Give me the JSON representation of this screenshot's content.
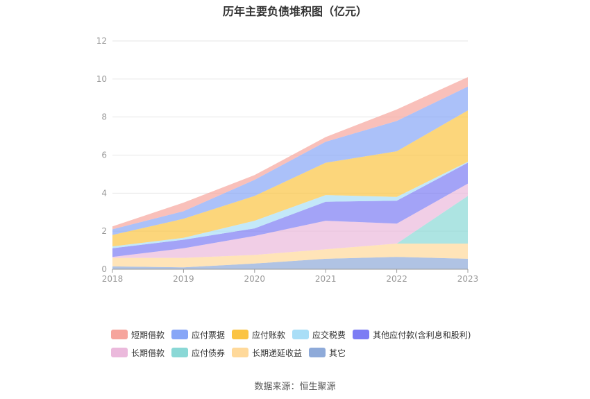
{
  "chart_data": {
    "type": "area",
    "stacked": true,
    "title": "历年主要负债堆积图（亿元）",
    "categories": [
      "2018",
      "2019",
      "2020",
      "2021",
      "2022",
      "2023"
    ],
    "ylim": [
      0,
      12
    ],
    "yticks": [
      0,
      2,
      4,
      6,
      8,
      10,
      12
    ],
    "grid": true,
    "legend_position": "bottom",
    "series": [
      {
        "name": "其它",
        "color": "#8eaad9",
        "values": [
          0.15,
          0.1,
          0.3,
          0.55,
          0.65,
          0.55
        ]
      },
      {
        "name": "长期递延收益",
        "color": "#ffd99a",
        "values": [
          0.45,
          0.5,
          0.45,
          0.5,
          0.7,
          0.8
        ]
      },
      {
        "name": "应付债券",
        "color": "#8ad8d6",
        "values": [
          0,
          0,
          0,
          0,
          0,
          2.5
        ]
      },
      {
        "name": "长期借款",
        "color": "#ebb9dc",
        "values": [
          0.05,
          0.5,
          1.0,
          1.5,
          1.05,
          0.65
        ]
      },
      {
        "name": "其他应付款(含利息和股利)",
        "color": "#7c7cf4",
        "values": [
          0.45,
          0.45,
          0.4,
          1.0,
          1.2,
          1.1
        ]
      },
      {
        "name": "应交税费",
        "color": "#a9def7",
        "values": [
          0.1,
          0.1,
          0.4,
          0.35,
          0.2,
          0.05
        ]
      },
      {
        "name": "应付账款",
        "color": "#fbc443",
        "values": [
          0.6,
          1.0,
          1.3,
          1.7,
          2.4,
          2.7
        ]
      },
      {
        "name": "应付票据",
        "color": "#87a6f7",
        "values": [
          0.3,
          0.4,
          0.85,
          1.1,
          1.6,
          1.25
        ]
      },
      {
        "name": "短期借款",
        "color": "#f6a59d",
        "values": [
          0.15,
          0.45,
          0.25,
          0.25,
          0.6,
          0.5
        ]
      }
    ]
  },
  "legend": {
    "rows": [
      [
        {
          "name": "短期借款",
          "color": "#f6a59d"
        },
        {
          "name": "应付票据",
          "color": "#87a6f7"
        },
        {
          "name": "应付账款",
          "color": "#fbc443"
        },
        {
          "name": "应交税费",
          "color": "#a9def7"
        },
        {
          "name": "其他应付款(含利息和股利)",
          "color": "#7c7cf4"
        }
      ],
      [
        {
          "name": "长期借款",
          "color": "#ebb9dc"
        },
        {
          "name": "应付债券",
          "color": "#8ad8d6"
        },
        {
          "name": "长期递延收益",
          "color": "#ffd99a"
        },
        {
          "name": "其它",
          "color": "#8eaad9"
        }
      ]
    ]
  },
  "source": "数据来源：恒生聚源"
}
